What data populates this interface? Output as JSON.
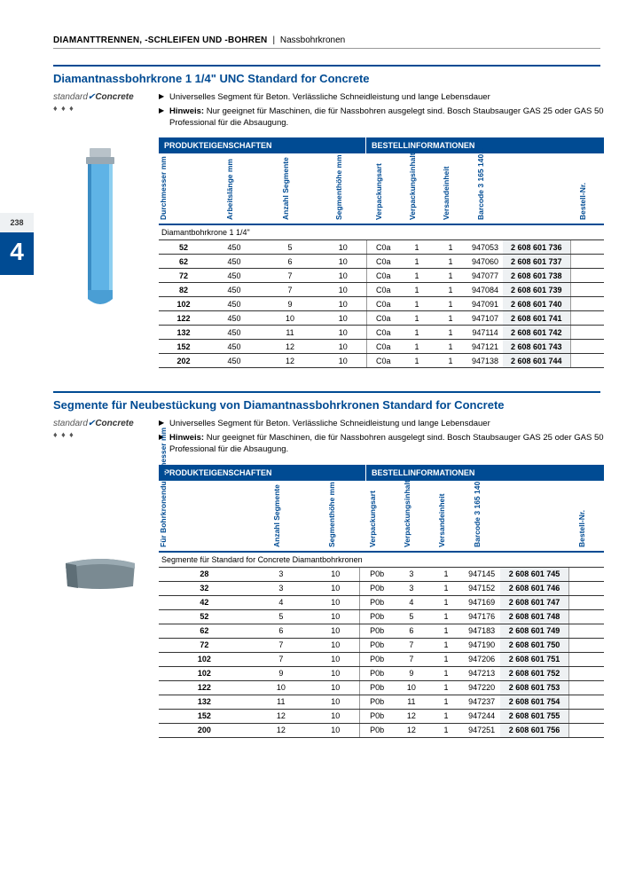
{
  "header": {
    "category": "DIAMANTTRENNEN, -SCHLEIFEN UND -BOHREN",
    "subcategory": "Nassbohrkronen"
  },
  "pageTab": {
    "pageNumber": "238",
    "chapter": "4"
  },
  "badge": {
    "standard": "standard",
    "concrete": "Concrete"
  },
  "section1": {
    "title": "Diamantnassbohrkrone 1 1/4\" UNC Standard for Concrete",
    "bullets": [
      {
        "html": "Universelles Segment für Beton. Verlässliche Schneidleistung und lange Lebensdauer"
      },
      {
        "html": "<b>Hinweis:</b> Nur geeignet für Maschinen, die für Nassbohren ausgelegt sind. Bosch Staubsauger GAS 25 oder GAS 50 Professional für die Absaugung."
      }
    ],
    "tableHeads": {
      "h1": "PRODUKTEIGENSCHAFTEN",
      "h2": "BESTELLINFORMATIONEN"
    },
    "columns": [
      {
        "label": "Durchmesser mm",
        "cls": "w-dm fc"
      },
      {
        "label": "Arbeitslänge mm",
        "cls": "w-al"
      },
      {
        "label": "Anzahl Segmente",
        "cls": "w-as"
      },
      {
        "label": "Segmenthöhe mm",
        "cls": "w-sh"
      },
      {
        "label": "Verpackungsart",
        "cls": "w-va"
      },
      {
        "label": "Verpackungsinhalt",
        "cls": "w-vi"
      },
      {
        "label": "Versandeinheit",
        "cls": "w-ve"
      },
      {
        "label": "Barcode 3 165 140...",
        "cls": "w-bc"
      },
      {
        "label": "",
        "cls": "w-bn"
      },
      {
        "label": "Bestell-Nr.",
        "cls": "w-sp"
      }
    ],
    "subhead": "Diamantbohrkrone 1 1/4\"",
    "rows": [
      [
        "52",
        "450",
        "5",
        "10",
        "C0a",
        "1",
        "1",
        "947053",
        "2 608 601 736",
        ""
      ],
      [
        "62",
        "450",
        "6",
        "10",
        "C0a",
        "1",
        "1",
        "947060",
        "2 608 601 737",
        ""
      ],
      [
        "72",
        "450",
        "7",
        "10",
        "C0a",
        "1",
        "1",
        "947077",
        "2 608 601 738",
        ""
      ],
      [
        "82",
        "450",
        "7",
        "10",
        "C0a",
        "1",
        "1",
        "947084",
        "2 608 601 739",
        ""
      ],
      [
        "102",
        "450",
        "9",
        "10",
        "C0a",
        "1",
        "1",
        "947091",
        "2 608 601 740",
        ""
      ],
      [
        "122",
        "450",
        "10",
        "10",
        "C0a",
        "1",
        "1",
        "947107",
        "2 608 601 741",
        ""
      ],
      [
        "132",
        "450",
        "11",
        "10",
        "C0a",
        "1",
        "1",
        "947114",
        "2 608 601 742",
        ""
      ],
      [
        "152",
        "450",
        "12",
        "10",
        "C0a",
        "1",
        "1",
        "947121",
        "2 608 601 743",
        ""
      ],
      [
        "202",
        "450",
        "12",
        "10",
        "C0a",
        "1",
        "1",
        "947138",
        "2 608 601 744",
        ""
      ]
    ]
  },
  "section2": {
    "title": "Segmente für Neubestückung von Diamantnassbohrkronen Standard for Concrete",
    "bullets": [
      {
        "html": "Universelles Segment für Beton. Verlässliche Schneidleistung und lange Lebensdauer"
      },
      {
        "html": "<b>Hinweis:</b> Nur geeignet für Maschinen, die für Nassbohren ausgelegt sind. Bosch Staubsauger GAS 25 oder GAS 50 Professional für die Absaugung."
      }
    ],
    "tableHeads": {
      "h1": "PRODUKTEIGENSCHAFTEN",
      "h2": "BESTELLINFORMATIONEN"
    },
    "columns": [
      {
        "label": "Für Bohrkronendurchmesser mm",
        "cls": "w-fd fc"
      },
      {
        "label": "Anzahl Segmente",
        "cls": "w-as"
      },
      {
        "label": "Segmenthöhe mm",
        "cls": "w-sh"
      },
      {
        "label": "Verpackungsart",
        "cls": "w-va"
      },
      {
        "label": "Verpackungsinhalt",
        "cls": "w-vi"
      },
      {
        "label": "Versandeinheit",
        "cls": "w-ve"
      },
      {
        "label": "Barcode 3 165 140...",
        "cls": "w-bc"
      },
      {
        "label": "",
        "cls": "w-bn"
      },
      {
        "label": "Bestell-Nr.",
        "cls": "w-sp"
      }
    ],
    "subhead": "Segmente für Standard for Concrete Diamantbohrkronen",
    "rows": [
      [
        "28",
        "3",
        "10",
        "P0b",
        "3",
        "1",
        "947145",
        "2 608 601 745",
        ""
      ],
      [
        "32",
        "3",
        "10",
        "P0b",
        "3",
        "1",
        "947152",
        "2 608 601 746",
        ""
      ],
      [
        "42",
        "4",
        "10",
        "P0b",
        "4",
        "1",
        "947169",
        "2 608 601 747",
        ""
      ],
      [
        "52",
        "5",
        "10",
        "P0b",
        "5",
        "1",
        "947176",
        "2 608 601 748",
        ""
      ],
      [
        "62",
        "6",
        "10",
        "P0b",
        "6",
        "1",
        "947183",
        "2 608 601 749",
        ""
      ],
      [
        "72",
        "7",
        "10",
        "P0b",
        "7",
        "1",
        "947190",
        "2 608 601 750",
        ""
      ],
      [
        "102",
        "7",
        "10",
        "P0b",
        "7",
        "1",
        "947206",
        "2 608 601 751",
        ""
      ],
      [
        "102",
        "9",
        "10",
        "P0b",
        "9",
        "1",
        "947213",
        "2 608 601 752",
        ""
      ],
      [
        "122",
        "10",
        "10",
        "P0b",
        "10",
        "1",
        "947220",
        "2 608 601 753",
        ""
      ],
      [
        "132",
        "11",
        "10",
        "P0b",
        "11",
        "1",
        "947237",
        "2 608 601 754",
        ""
      ],
      [
        "152",
        "12",
        "10",
        "P0b",
        "12",
        "1",
        "947244",
        "2 608 601 755",
        ""
      ],
      [
        "200",
        "12",
        "10",
        "P0b",
        "12",
        "1",
        "947251",
        "2 608 601 756",
        ""
      ]
    ]
  },
  "colors": {
    "primary": "#004b93",
    "highlight": "#eef1f3",
    "core": "#5fb3e6",
    "segment": "#8a9aa5"
  }
}
